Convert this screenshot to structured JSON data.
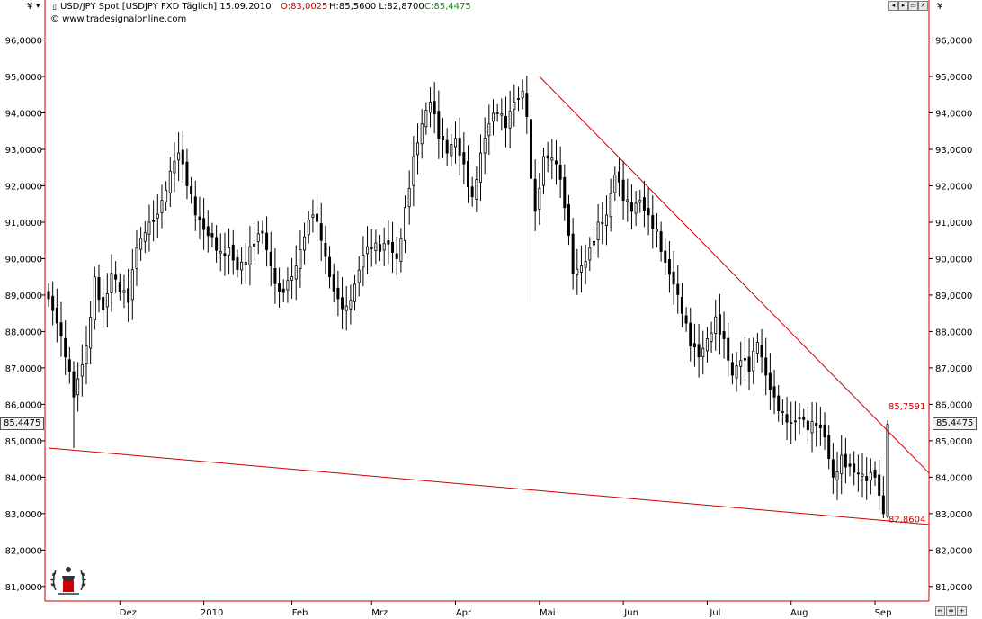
{
  "header": {
    "currency_symbol": "¥",
    "instrument": "USD/JPY Spot [USDJPY FXD  Täglich] 15.09.2010",
    "open_label": "O:83,0025",
    "high_low_label": "H:85,5600 L:82,8700",
    "close_label": "C:85,4475",
    "source": "© www.tradesignalonline.com",
    "icon_colors": {
      "open": "#cc0000",
      "close": "#009900"
    }
  },
  "window_controls": [
    {
      "name": "scroll-left-icon",
      "glyph": "◂"
    },
    {
      "name": "scroll-right-icon",
      "glyph": "▸"
    },
    {
      "name": "restore-icon",
      "glyph": "▭"
    },
    {
      "name": "close-icon",
      "glyph": "×"
    }
  ],
  "bottom_controls": [
    {
      "name": "zoom-horizontal-icon",
      "glyph": "↔"
    },
    {
      "name": "scroll-horizontal-icon",
      "glyph": "⇔"
    },
    {
      "name": "zoom-in-icon",
      "glyph": "+"
    }
  ],
  "price_boxes": {
    "left": "85,4475",
    "right": "85,4475"
  },
  "chart_data": {
    "type": "candlestick",
    "title": "USD/JPY Spot [USDJPY FXD  Täglich] 15.09.2010",
    "y_ticks": [
      "96,0000",
      "95,0000",
      "94,0000",
      "93,0000",
      "92,0000",
      "91,0000",
      "90,0000",
      "89,0000",
      "88,0000",
      "87,0000",
      "86,0000",
      "85,0000",
      "84,0000",
      "83,0000",
      "82,0000",
      "81,0000"
    ],
    "y_tick_values": [
      96,
      95,
      94,
      93,
      92,
      91,
      90,
      89,
      88,
      87,
      86,
      85,
      84,
      83,
      82,
      81
    ],
    "ylim": [
      80.6,
      97.1
    ],
    "x_ticks": [
      "Dez",
      "2010",
      "Feb",
      "Mrz",
      "Apr",
      "Mai",
      "Jun",
      "Jul",
      "Aug",
      "Sep"
    ],
    "x_tick_index": [
      17,
      37,
      58,
      77,
      97,
      117,
      137,
      157,
      177,
      197
    ],
    "n_bars": 210,
    "key_closes": [
      [
        0,
        88.9
      ],
      [
        4,
        87.3
      ],
      [
        6,
        86.2
      ],
      [
        9,
        87.6
      ],
      [
        11,
        89.5
      ],
      [
        13,
        88.6
      ],
      [
        15,
        89.6
      ],
      [
        17,
        89.1
      ],
      [
        19,
        88.8
      ],
      [
        21,
        90.3
      ],
      [
        24,
        91.0
      ],
      [
        27,
        91.6
      ],
      [
        29,
        92.4
      ],
      [
        31,
        92.9
      ],
      [
        33,
        92.0
      ],
      [
        35,
        91.2
      ],
      [
        37,
        90.8
      ],
      [
        39,
        90.6
      ],
      [
        41,
        90.2
      ],
      [
        43,
        90.3
      ],
      [
        45,
        89.7
      ],
      [
        47,
        89.9
      ],
      [
        49,
        90.4
      ],
      [
        51,
        90.7
      ],
      [
        53,
        89.8
      ],
      [
        55,
        89.1
      ],
      [
        57,
        89.4
      ],
      [
        59,
        89.8
      ],
      [
        61,
        90.6
      ],
      [
        63,
        91.2
      ],
      [
        65,
        90.5
      ],
      [
        67,
        89.5
      ],
      [
        69,
        88.9
      ],
      [
        71,
        88.7
      ],
      [
        73,
        89.3
      ],
      [
        75,
        90.1
      ],
      [
        77,
        90.3
      ],
      [
        79,
        90.2
      ],
      [
        81,
        90.4
      ],
      [
        83,
        90.0
      ],
      [
        85,
        91.4
      ],
      [
        87,
        92.8
      ],
      [
        89,
        93.7
      ],
      [
        91,
        94.3
      ],
      [
        93,
        93.3
      ],
      [
        95,
        92.9
      ],
      [
        97,
        93.3
      ],
      [
        99,
        92.6
      ],
      [
        101,
        91.7
      ],
      [
        103,
        92.9
      ],
      [
        105,
        93.7
      ],
      [
        107,
        94.0
      ],
      [
        109,
        93.6
      ],
      [
        111,
        94.3
      ],
      [
        113,
        94.6
      ],
      [
        114,
        93.9
      ],
      [
        115,
        92.2
      ],
      [
        116,
        91.3
      ],
      [
        118,
        92.8
      ],
      [
        121,
        92.6
      ],
      [
        123,
        91.4
      ],
      [
        125,
        89.6
      ],
      [
        127,
        89.8
      ],
      [
        129,
        90.3
      ],
      [
        131,
        91.0
      ],
      [
        133,
        91.2
      ],
      [
        135,
        92.3
      ],
      [
        137,
        91.6
      ],
      [
        139,
        91.3
      ],
      [
        141,
        91.6
      ],
      [
        143,
        91.2
      ],
      [
        145,
        90.8
      ],
      [
        147,
        89.9
      ],
      [
        149,
        89.3
      ],
      [
        151,
        88.5
      ],
      [
        153,
        87.6
      ],
      [
        155,
        87.3
      ],
      [
        157,
        87.8
      ],
      [
        159,
        88.4
      ],
      [
        161,
        87.8
      ],
      [
        163,
        86.8
      ],
      [
        165,
        87.2
      ],
      [
        167,
        86.9
      ],
      [
        169,
        87.7
      ],
      [
        171,
        86.8
      ],
      [
        173,
        86.2
      ],
      [
        175,
        85.8
      ],
      [
        177,
        85.5
      ],
      [
        179,
        85.6
      ],
      [
        181,
        85.3
      ],
      [
        183,
        85.4
      ],
      [
        185,
        85.1
      ],
      [
        187,
        84.0
      ],
      [
        189,
        84.6
      ],
      [
        191,
        84.3
      ],
      [
        193,
        84.1
      ],
      [
        195,
        83.9
      ],
      [
        197,
        84.0
      ],
      [
        198,
        83.5
      ],
      [
        199,
        83.0
      ],
      [
        200,
        85.45
      ]
    ],
    "trendlines": [
      {
        "name": "upper-trendline",
        "color": "#cc0000",
        "x": [
          117,
          210
        ],
        "y": [
          95.0,
          84.1
        ]
      },
      {
        "name": "lower-trendline",
        "color": "#cc0000",
        "x": [
          0,
          210
        ],
        "y": [
          84.8,
          82.7
        ]
      }
    ],
    "annotations": [
      {
        "name": "upper-trendline-value-label",
        "text": "85,7591",
        "x": 200,
        "y": 85.76
      },
      {
        "name": "lower-trendline-value-label",
        "text": "82,8604",
        "x": 200,
        "y": 82.86
      }
    ],
    "last_value": "85,4475",
    "colors": {
      "candle": "#000000",
      "trendline": "#cc0000",
      "axis": "#cc0000"
    },
    "grid": false,
    "legend": "none"
  },
  "logo": {
    "name": "tradesignal-laurel-logo"
  }
}
